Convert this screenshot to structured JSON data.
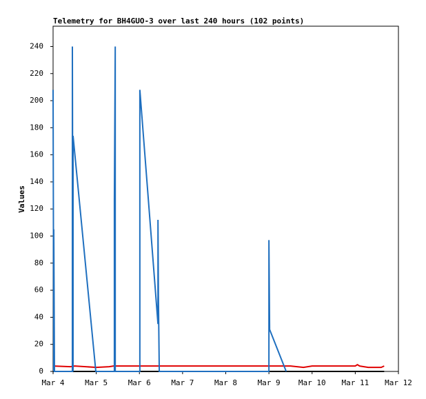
{
  "chart_data": {
    "type": "line",
    "title": "Telemetry for BH4GUO-3 over last 240 hours (102 points)",
    "y_label": "Values",
    "xlim": [
      4,
      12
    ],
    "xticks": [
      {
        "value": 4,
        "label": "Mar 4"
      },
      {
        "value": 5,
        "label": "Mar 5"
      },
      {
        "value": 6,
        "label": "Mar 6"
      },
      {
        "value": 7,
        "label": "Mar 7"
      },
      {
        "value": 8,
        "label": "Mar 8"
      },
      {
        "value": 9,
        "label": "Mar 9"
      },
      {
        "value": 10,
        "label": "Mar 10"
      },
      {
        "value": 11,
        "label": "Mar 11"
      },
      {
        "value": 12,
        "label": "Mar 12"
      }
    ],
    "ylim": [
      0,
      255
    ],
    "yticks": [
      0,
      20,
      40,
      60,
      80,
      100,
      120,
      140,
      160,
      180,
      200,
      220,
      240
    ],
    "series": [
      {
        "color": "#000000",
        "x": [
          4.0,
          11.67
        ],
        "values": [
          0,
          0
        ]
      },
      {
        "color": "#e00000",
        "x": [
          4.0,
          4.4,
          4.5,
          5.0,
          5.3,
          5.4,
          7.0,
          9.0,
          9.5,
          9.8,
          10.0,
          11.0,
          11.05,
          11.1,
          11.3,
          11.6,
          11.67
        ],
        "values": [
          4,
          3.5,
          4,
          3,
          3.5,
          4,
          4,
          4,
          4,
          3,
          4,
          4,
          5,
          4,
          3,
          3,
          4
        ]
      },
      {
        "color": "#1f6fbf",
        "x": [
          4.0,
          4.016,
          4.016,
          4.032,
          4.447,
          4.447,
          4.463,
          4.463,
          4.99,
          5.42,
          5.42,
          5.44,
          5.44,
          6.01,
          6.01,
          6.43,
          6.43,
          6.44,
          6.46,
          9.0,
          9.0,
          9.016,
          9.4
        ],
        "values": [
          208,
          0,
          105,
          0,
          0,
          240,
          0,
          174,
          0,
          0,
          127,
          240,
          0,
          0,
          208,
          35,
          112,
          56,
          0,
          0,
          97,
          31,
          0
        ]
      }
    ]
  }
}
